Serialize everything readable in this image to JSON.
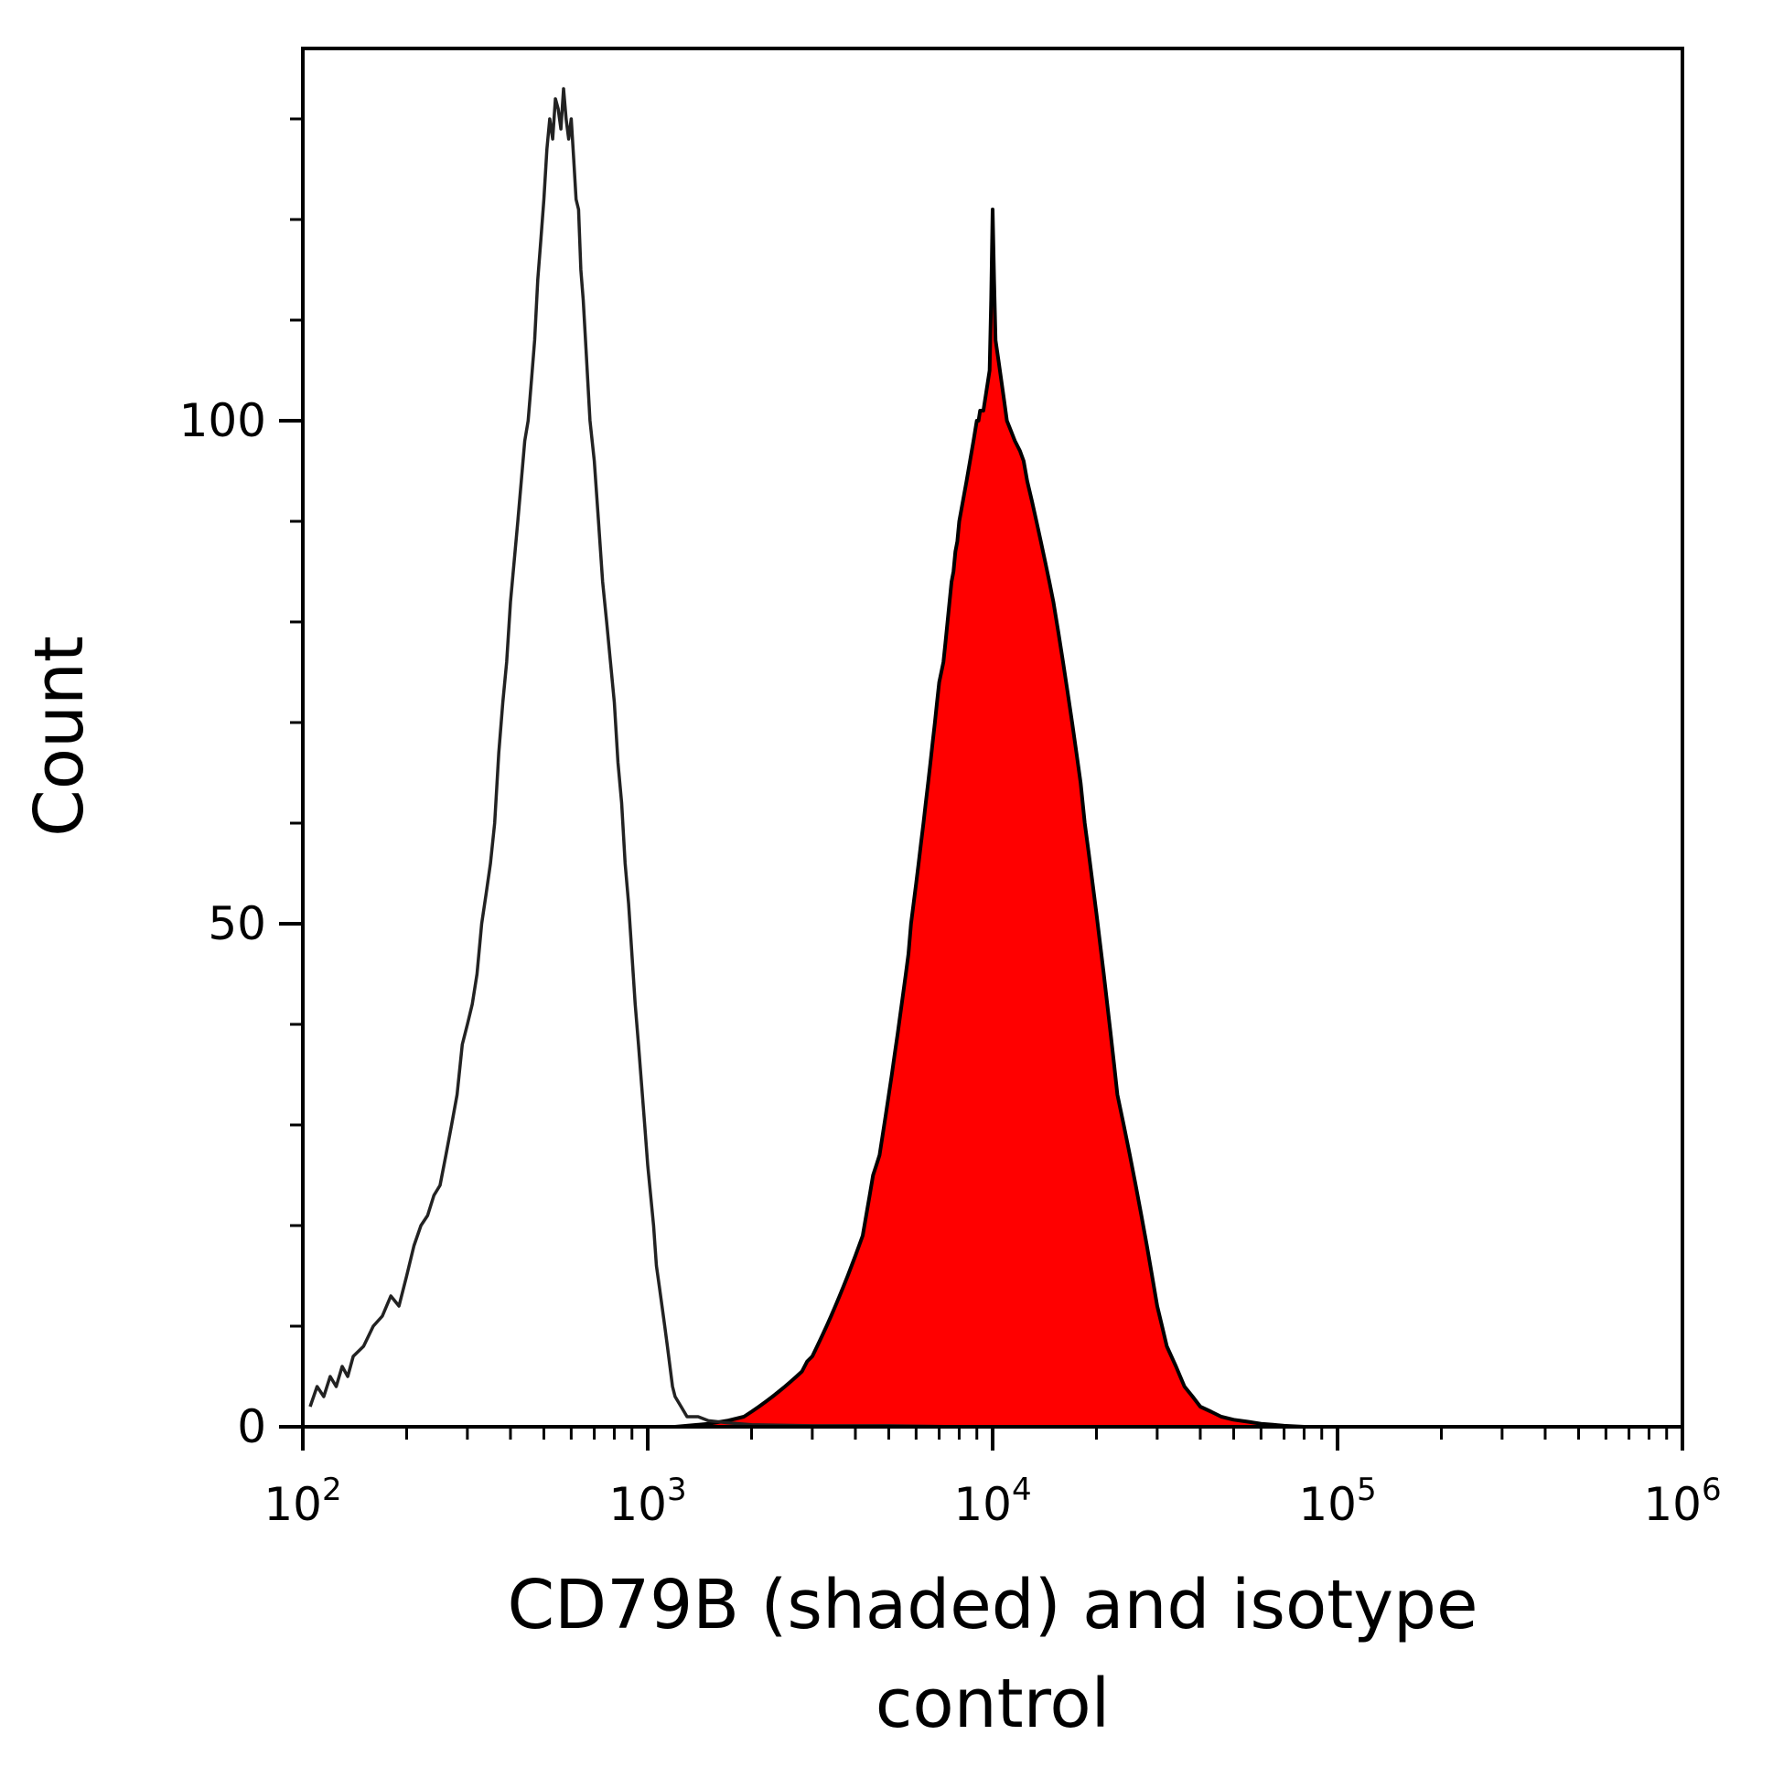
{
  "chart_data": {
    "type": "area",
    "xlabel_line1": "CD79B (shaded) and isotype",
    "xlabel_line2": "control",
    "ylabel": "Count",
    "x_scale": "log",
    "xlim": [
      100,
      1000000
    ],
    "ylim": [
      0,
      137
    ],
    "x_ticks": [
      {
        "base": "10",
        "exp": "2",
        "value": 100
      },
      {
        "base": "10",
        "exp": "3",
        "value": 1000
      },
      {
        "base": "10",
        "exp": "4",
        "value": 10000
      },
      {
        "base": "10",
        "exp": "5",
        "value": 100000
      },
      {
        "base": "10",
        "exp": "6",
        "value": 1000000
      }
    ],
    "y_ticks": [
      {
        "label": "0",
        "value": 0
      },
      {
        "label": "50",
        "value": 50
      },
      {
        "label": "100",
        "value": 100
      }
    ],
    "y_minor_step": 10,
    "grid": false,
    "colors": {
      "cd79b_fill": "#ff0000",
      "cd79b_line": "#000000",
      "isotype_line": "#222222",
      "axis": "#000000"
    },
    "series": [
      {
        "key": "isotype",
        "style": "line",
        "points": [
          [
            105,
            2
          ],
          [
            110,
            4
          ],
          [
            115,
            3
          ],
          [
            120,
            5
          ],
          [
            125,
            4
          ],
          [
            130,
            6
          ],
          [
            135,
            5
          ],
          [
            140,
            7
          ],
          [
            150,
            8
          ],
          [
            160,
            10
          ],
          [
            170,
            11
          ],
          [
            180,
            13
          ],
          [
            190,
            12
          ],
          [
            200,
            15
          ],
          [
            210,
            18
          ],
          [
            220,
            20
          ],
          [
            230,
            21
          ],
          [
            240,
            23
          ],
          [
            250,
            24
          ],
          [
            260,
            27
          ],
          [
            270,
            30
          ],
          [
            280,
            33
          ],
          [
            290,
            38
          ],
          [
            300,
            40
          ],
          [
            310,
            42
          ],
          [
            320,
            45
          ],
          [
            330,
            50
          ],
          [
            340,
            53
          ],
          [
            350,
            56
          ],
          [
            360,
            60
          ],
          [
            370,
            67
          ],
          [
            380,
            72
          ],
          [
            390,
            76
          ],
          [
            400,
            82
          ],
          [
            410,
            86
          ],
          [
            420,
            90
          ],
          [
            430,
            94
          ],
          [
            440,
            98
          ],
          [
            450,
            100
          ],
          [
            460,
            104
          ],
          [
            470,
            108
          ],
          [
            480,
            114
          ],
          [
            490,
            118
          ],
          [
            500,
            122
          ],
          [
            510,
            127
          ],
          [
            520,
            130
          ],
          [
            530,
            128
          ],
          [
            540,
            132
          ],
          [
            550,
            131
          ],
          [
            560,
            129
          ],
          [
            570,
            133
          ],
          [
            580,
            130
          ],
          [
            590,
            128
          ],
          [
            600,
            130
          ],
          [
            610,
            126
          ],
          [
            620,
            122
          ],
          [
            630,
            121
          ],
          [
            640,
            115
          ],
          [
            650,
            112
          ],
          [
            660,
            108
          ],
          [
            680,
            100
          ],
          [
            700,
            96
          ],
          [
            720,
            90
          ],
          [
            740,
            84
          ],
          [
            760,
            80
          ],
          [
            780,
            76
          ],
          [
            800,
            72
          ],
          [
            820,
            66
          ],
          [
            840,
            62
          ],
          [
            860,
            56
          ],
          [
            880,
            52
          ],
          [
            900,
            47
          ],
          [
            920,
            42
          ],
          [
            940,
            38
          ],
          [
            960,
            34
          ],
          [
            980,
            30
          ],
          [
            1000,
            26
          ],
          [
            1020,
            23
          ],
          [
            1040,
            20
          ],
          [
            1060,
            16
          ],
          [
            1080,
            14
          ],
          [
            1100,
            12
          ],
          [
            1120,
            10
          ],
          [
            1140,
            8
          ],
          [
            1160,
            6
          ],
          [
            1180,
            4
          ],
          [
            1200,
            3
          ],
          [
            1250,
            2
          ],
          [
            1300,
            1
          ],
          [
            1400,
            1
          ],
          [
            1500,
            0.6
          ],
          [
            1700,
            0.4
          ],
          [
            2000,
            0.2
          ],
          [
            3000,
            0.1
          ],
          [
            5000,
            0.1
          ],
          [
            8000,
            0
          ],
          [
            20000,
            0
          ]
        ]
      },
      {
        "key": "cd79b",
        "style": "filled",
        "points": [
          [
            1200,
            0
          ],
          [
            1500,
            0.3
          ],
          [
            1700,
            0.6
          ],
          [
            1900,
            1
          ],
          [
            2000,
            1.5
          ],
          [
            2100,
            2
          ],
          [
            2200,
            2.5
          ],
          [
            2300,
            3
          ],
          [
            2400,
            3.5
          ],
          [
            2500,
            4
          ],
          [
            2600,
            4.5
          ],
          [
            2700,
            5
          ],
          [
            2800,
            5.5
          ],
          [
            2900,
            6.5
          ],
          [
            3000,
            7
          ],
          [
            3100,
            8
          ],
          [
            3200,
            9
          ],
          [
            3300,
            10
          ],
          [
            3400,
            11
          ],
          [
            3500,
            12
          ],
          [
            3600,
            13
          ],
          [
            3700,
            14
          ],
          [
            3800,
            15
          ],
          [
            3900,
            16
          ],
          [
            4000,
            17
          ],
          [
            4100,
            18
          ],
          [
            4200,
            19
          ],
          [
            4300,
            21
          ],
          [
            4400,
            23
          ],
          [
            4500,
            25
          ],
          [
            4600,
            26
          ],
          [
            4700,
            27
          ],
          [
            4800,
            29
          ],
          [
            4900,
            31
          ],
          [
            5000,
            33
          ],
          [
            5100,
            35
          ],
          [
            5200,
            37
          ],
          [
            5300,
            39
          ],
          [
            5400,
            41
          ],
          [
            5500,
            43
          ],
          [
            5600,
            45
          ],
          [
            5700,
            47
          ],
          [
            5800,
            50
          ],
          [
            5900,
            52
          ],
          [
            6000,
            54
          ],
          [
            6100,
            56
          ],
          [
            6200,
            58
          ],
          [
            6300,
            60
          ],
          [
            6400,
            62
          ],
          [
            6500,
            64
          ],
          [
            6600,
            66
          ],
          [
            6700,
            68
          ],
          [
            6800,
            70
          ],
          [
            6900,
            72
          ],
          [
            7000,
            74
          ],
          [
            7100,
            75
          ],
          [
            7200,
            76
          ],
          [
            7300,
            78
          ],
          [
            7400,
            80
          ],
          [
            7500,
            82
          ],
          [
            7600,
            84
          ],
          [
            7700,
            85
          ],
          [
            7800,
            87
          ],
          [
            7900,
            88
          ],
          [
            8000,
            90
          ],
          [
            8100,
            91
          ],
          [
            8200,
            92
          ],
          [
            8300,
            93
          ],
          [
            8400,
            94
          ],
          [
            8500,
            95
          ],
          [
            8600,
            96
          ],
          [
            8700,
            97
          ],
          [
            8800,
            98
          ],
          [
            8900,
            99
          ],
          [
            9000,
            100
          ],
          [
            9100,
            100
          ],
          [
            9200,
            101
          ],
          [
            9300,
            101
          ],
          [
            9400,
            101
          ],
          [
            9500,
            102
          ],
          [
            9600,
            103
          ],
          [
            9700,
            104
          ],
          [
            9800,
            105
          ],
          [
            9900,
            112
          ],
          [
            10000,
            121
          ],
          [
            10100,
            114
          ],
          [
            10200,
            108
          ],
          [
            10400,
            106
          ],
          [
            10600,
            104
          ],
          [
            10800,
            102
          ],
          [
            11000,
            100
          ],
          [
            11300,
            99
          ],
          [
            11600,
            98
          ],
          [
            12000,
            97
          ],
          [
            12300,
            96
          ],
          [
            12600,
            94
          ],
          [
            13000,
            92
          ],
          [
            13400,
            90
          ],
          [
            13800,
            88
          ],
          [
            14200,
            86
          ],
          [
            14600,
            84
          ],
          [
            15000,
            82
          ],
          [
            15500,
            79
          ],
          [
            16000,
            76
          ],
          [
            16500,
            73
          ],
          [
            17000,
            70
          ],
          [
            17500,
            67
          ],
          [
            18000,
            64
          ],
          [
            18500,
            60
          ],
          [
            19000,
            57
          ],
          [
            19500,
            54
          ],
          [
            20000,
            51
          ],
          [
            20500,
            48
          ],
          [
            21000,
            45
          ],
          [
            21500,
            42
          ],
          [
            22000,
            39
          ],
          [
            22500,
            36
          ],
          [
            23000,
            33
          ],
          [
            24000,
            30
          ],
          [
            25000,
            27
          ],
          [
            26000,
            24
          ],
          [
            27000,
            21
          ],
          [
            28000,
            18
          ],
          [
            29000,
            15
          ],
          [
            30000,
            12
          ],
          [
            31000,
            10
          ],
          [
            32000,
            8
          ],
          [
            34000,
            6
          ],
          [
            36000,
            4
          ],
          [
            38000,
            3
          ],
          [
            40000,
            2
          ],
          [
            43000,
            1.5
          ],
          [
            46000,
            1
          ],
          [
            50000,
            0.7
          ],
          [
            55000,
            0.5
          ],
          [
            60000,
            0.3
          ],
          [
            65000,
            0.2
          ],
          [
            70000,
            0.1
          ],
          [
            80000,
            0
          ]
        ]
      }
    ]
  }
}
